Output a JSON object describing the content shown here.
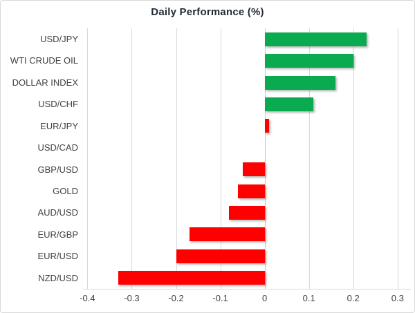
{
  "chart_data": {
    "type": "bar",
    "orientation": "horizontal",
    "title": "Daily Performance (%)",
    "categories": [
      "USD/JPY",
      "WTI CRUDE OIL",
      "DOLLAR INDEX",
      "USD/CHF",
      "EUR/JPY",
      "USD/CAD",
      "GBP/USD",
      "GOLD",
      "AUD/USD",
      "EUR/GBP",
      "EUR/USD",
      "NZD/USD"
    ],
    "values": [
      0.23,
      0.2,
      0.16,
      0.11,
      0.01,
      0.0,
      -0.05,
      -0.06,
      -0.08,
      -0.17,
      -0.2,
      -0.33
    ],
    "bar_colors": [
      "green",
      "green",
      "green",
      "green",
      "red",
      "none",
      "red",
      "red",
      "red",
      "red",
      "red",
      "red"
    ],
    "xlabel": "",
    "ylabel": "",
    "xlim": [
      -0.41,
      0.33
    ],
    "xticks": [
      {
        "value": -0.4,
        "label": "-0.4"
      },
      {
        "value": -0.3,
        "label": "-0.3"
      },
      {
        "value": -0.2,
        "label": "-0.2"
      },
      {
        "value": -0.1,
        "label": "-0.1"
      },
      {
        "value": 0,
        "label": "0"
      },
      {
        "value": 0.1,
        "label": "0.1"
      },
      {
        "value": 0.2,
        "label": "0.2"
      },
      {
        "value": 0.3,
        "label": "0.3"
      }
    ],
    "grid": "vertical",
    "legend": "none",
    "colors": {
      "positive": "#0aaa50",
      "negative": "#fe0000",
      "gridline": "#d9d9d9",
      "zero_line": "#c6c6c6",
      "label_text": "#404040",
      "title_text": "#222b35",
      "border": "#d9d9d9",
      "background": "#ffffff"
    }
  }
}
